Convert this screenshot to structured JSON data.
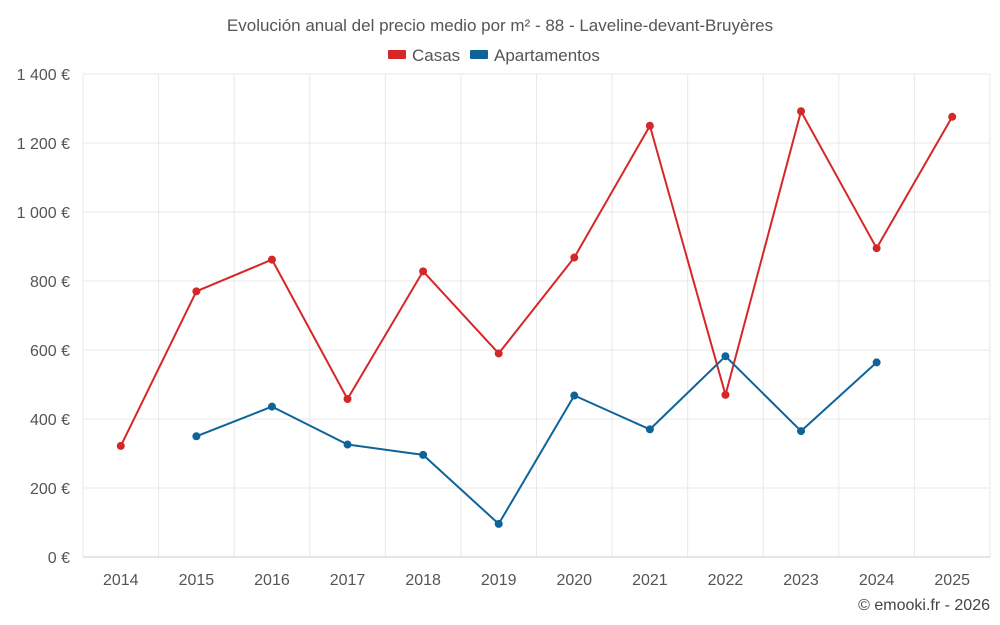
{
  "chart_data": {
    "type": "line",
    "title": "Evolución anual del precio medio por m² - 88 - Laveline-devant-Bruyères",
    "categories": [
      "2014",
      "2015",
      "2016",
      "2017",
      "2018",
      "2019",
      "2020",
      "2021",
      "2022",
      "2023",
      "2024",
      "2025"
    ],
    "series": [
      {
        "name": "Casas",
        "color": "#d62728",
        "values": [
          322,
          770,
          862,
          458,
          828,
          590,
          868,
          1250,
          470,
          1292,
          895,
          1276
        ]
      },
      {
        "name": "Apartamentos",
        "color": "#0e6399",
        "values": [
          null,
          350,
          436,
          326,
          296,
          96,
          468,
          370,
          582,
          365,
          564,
          null
        ]
      }
    ],
    "ylim": [
      0,
      1400
    ],
    "yticks": [
      0,
      200,
      400,
      600,
      800,
      1000,
      1200,
      1400
    ],
    "ytick_labels": [
      "0 €",
      "200 €",
      "400 €",
      "600 €",
      "800 €",
      "1 000 €",
      "1 200 €",
      "1 400 €"
    ],
    "grid": true,
    "legend": "top-center",
    "xlabel": "",
    "ylabel": ""
  },
  "credit": "© emooki.fr - 2026"
}
